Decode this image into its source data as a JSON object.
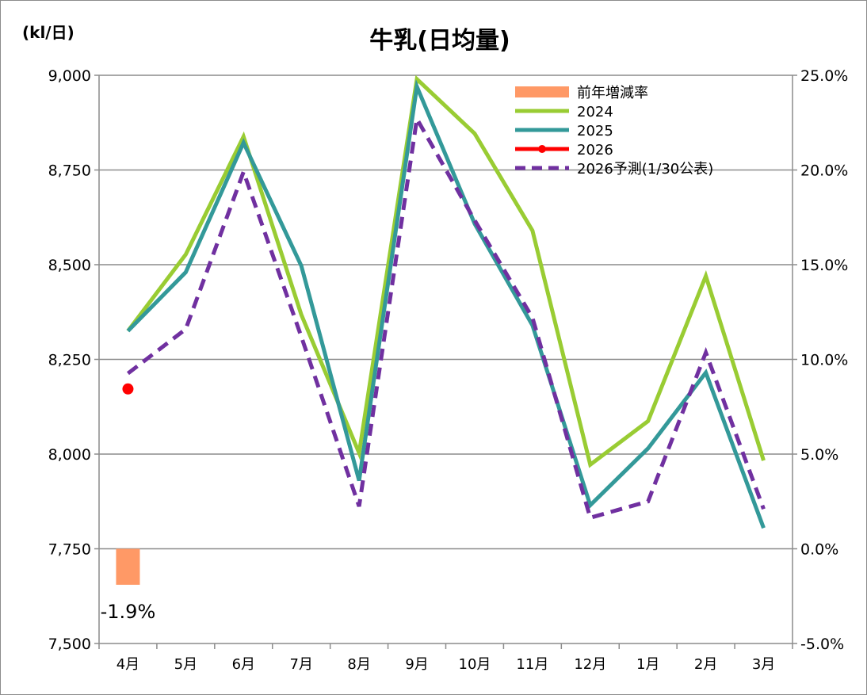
{
  "chart_data": {
    "type": "line",
    "title": "牛乳(日均量)",
    "ylabel": "(kl/日)",
    "categories": [
      "4月",
      "5月",
      "6月",
      "7月",
      "8月",
      "9月",
      "10月",
      "11月",
      "12月",
      "1月",
      "2月",
      "3月"
    ],
    "ylim": [
      7500,
      9000
    ],
    "yticks": [
      "9,000",
      "8,750",
      "8,500",
      "8,250",
      "8,000",
      "7,750",
      "7,500"
    ],
    "ytick_values": [
      9000,
      8750,
      8500,
      8250,
      8000,
      7750,
      7500
    ],
    "y2lim": [
      -5.0,
      25.0
    ],
    "y2ticks": [
      "25.0%",
      "20.0%",
      "15.0%",
      "10.0%",
      "5.0%",
      "0.0%",
      "-5.0%"
    ],
    "y2tick_values": [
      25,
      20,
      15,
      10,
      5,
      0,
      -5
    ],
    "grid": true,
    "legend_position": "top-right",
    "series": [
      {
        "name": "前年増減率",
        "type": "bar",
        "axis": "right",
        "color": "#ff9966",
        "values": [
          -1.9,
          null,
          null,
          null,
          null,
          null,
          null,
          null,
          null,
          null,
          null,
          null
        ],
        "labels": [
          "-1.9%",
          "",
          "",
          "",
          "",
          "",
          "",
          "",
          "",
          "",
          "",
          ""
        ]
      },
      {
        "name": "2024",
        "type": "line",
        "color": "#99cc33",
        "values": [
          8325,
          8527,
          8838,
          8368,
          8003,
          8990,
          8846,
          8590,
          7972,
          8087,
          8470,
          7983
        ]
      },
      {
        "name": "2025",
        "type": "line",
        "color": "#339999",
        "values": [
          8325,
          8480,
          8822,
          8497,
          7930,
          8970,
          8608,
          8340,
          7865,
          8015,
          8215,
          7805
        ]
      },
      {
        "name": "2026",
        "type": "line-marker",
        "color": "#ff0000",
        "values": [
          8172,
          null,
          null,
          null,
          null,
          null,
          null,
          null,
          null,
          null,
          null,
          null
        ]
      },
      {
        "name": "2026予測(1/30公表)",
        "type": "dashed",
        "color": "#7030a0",
        "values": [
          8213,
          8330,
          8745,
          8310,
          7862,
          8885,
          8617,
          8360,
          7832,
          7875,
          8268,
          7855
        ]
      }
    ]
  }
}
